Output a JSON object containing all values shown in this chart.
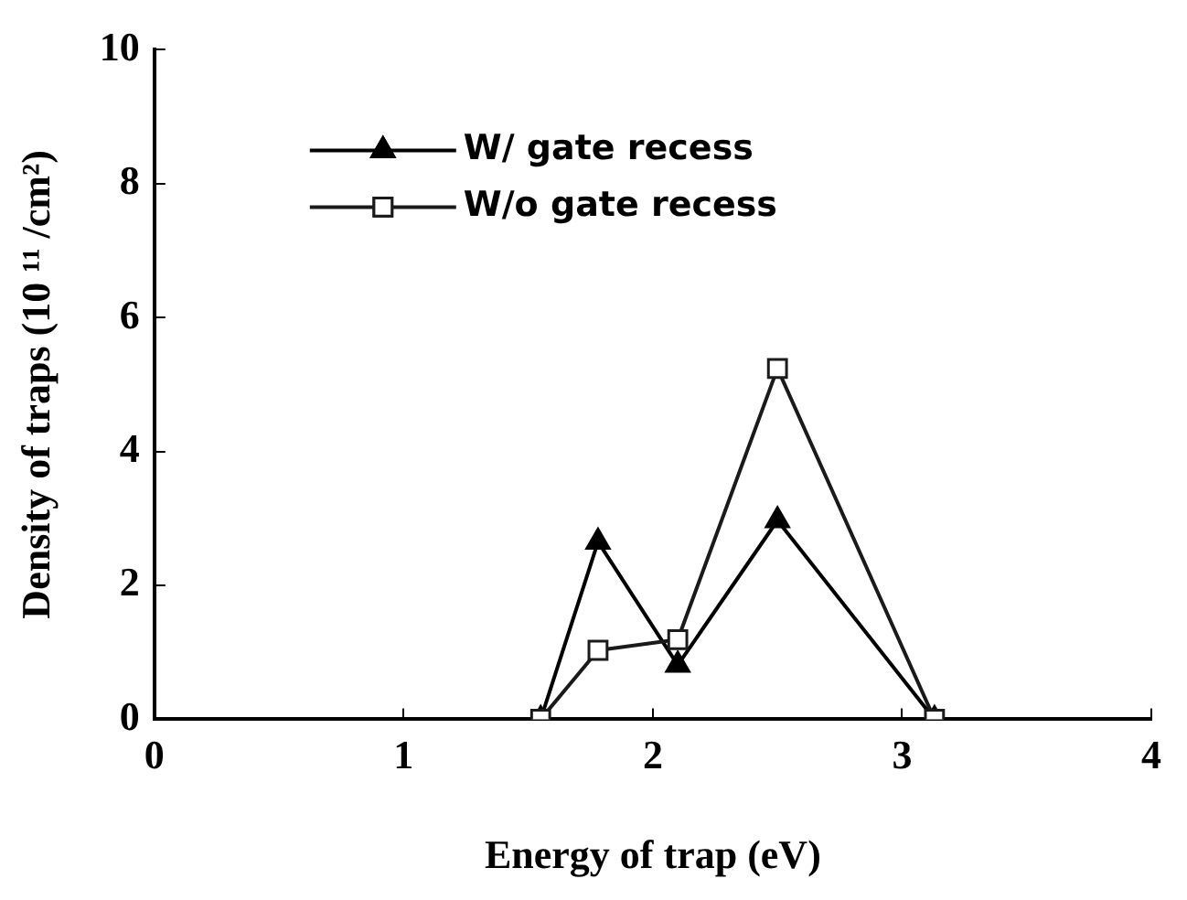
{
  "chart_data": {
    "type": "line",
    "xlabel": "Energy of trap (eV)",
    "ylabel": "Density of traps (10 ¹¹ /cm²)",
    "xlim": [
      0,
      4
    ],
    "xticks": [
      0,
      1,
      2,
      3,
      4
    ],
    "ylim": [
      0,
      10
    ],
    "yticks": [
      0,
      2,
      4,
      6,
      8,
      10
    ],
    "grid": false,
    "legend": "top left",
    "line_style": "solid",
    "series": [
      {
        "name": "W/ gate recess",
        "color": "#000000",
        "marker": "triangle",
        "x": [
          1.55,
          1.78,
          2.1,
          2.5,
          3.13
        ],
        "values": [
          0,
          2.65,
          0.81,
          2.97,
          0
        ]
      },
      {
        "name": "W/o gate recess",
        "color": "#1a1a1a",
        "marker": "square",
        "x": [
          1.55,
          1.78,
          2.1,
          2.5,
          3.13
        ],
        "values": [
          0,
          1.03,
          1.19,
          5.24,
          0
        ]
      }
    ]
  }
}
